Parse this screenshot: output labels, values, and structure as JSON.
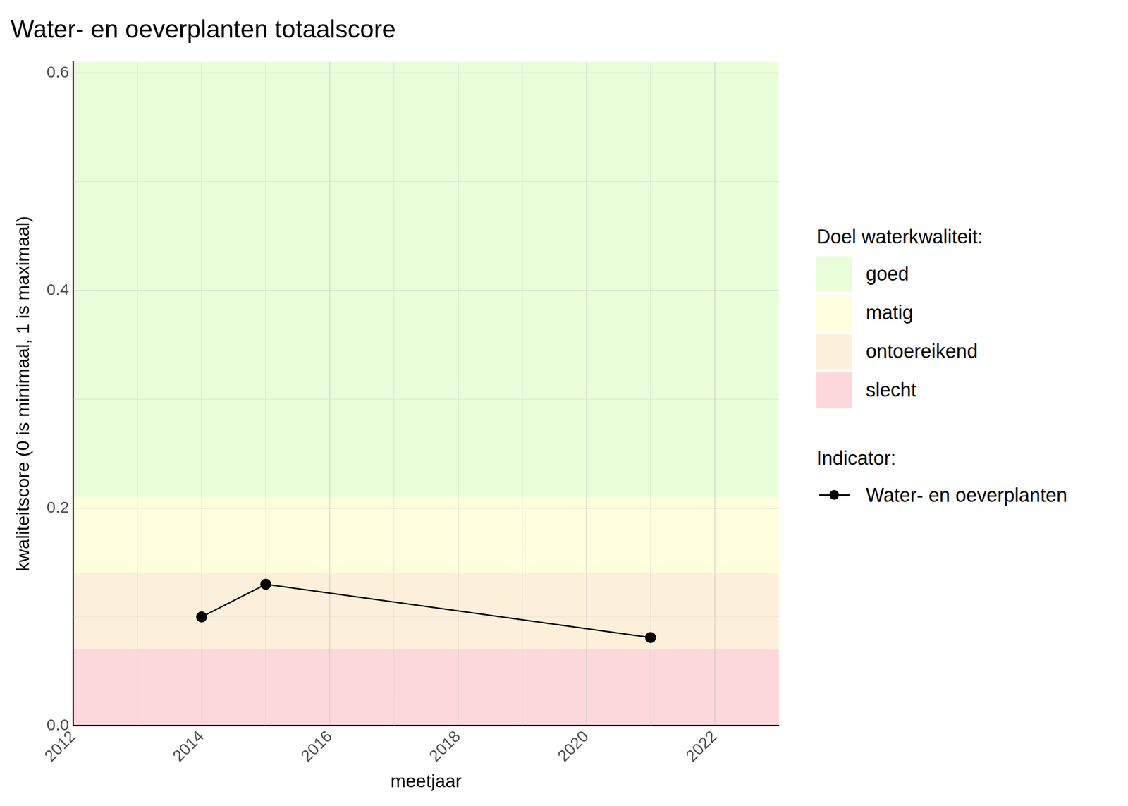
{
  "chart_data": {
    "type": "line",
    "title": "Water- en oeverplanten totaalscore",
    "x_label": "meetjaar",
    "y_label": "kwaliteitscore (0 is minimaal, 1 is maximaal)",
    "x": [
      2014,
      2015,
      2021
    ],
    "series": [
      {
        "name": "Water- en oeverplanten",
        "color": "#000000",
        "values": [
          0.1,
          0.13,
          0.081
        ],
        "marker": "circle",
        "line_style": "solid"
      }
    ],
    "xlim": [
      2012,
      2023
    ],
    "xticks": [
      2012,
      2014,
      2016,
      2018,
      2020,
      2022
    ],
    "ylim": [
      0,
      0.61
    ],
    "yticks": [
      {
        "value": 0,
        "label": "0.0"
      },
      0.2,
      0.4,
      0.6
    ],
    "grid": true,
    "legend": "right",
    "legend_titles": {
      "bands": "Doel waterkwaliteit:",
      "series": "Indicator:"
    },
    "bands": [
      {
        "name": "goed",
        "color": "#e8fdd8",
        "from": 0.21,
        "to": 0.61
      },
      {
        "name": "matig",
        "color": "#fefedc",
        "from": 0.14,
        "to": 0.21
      },
      {
        "name": "ontoereikend",
        "color": "#fdf0da",
        "from": 0.07,
        "to": 0.14
      },
      {
        "name": "slecht",
        "color": "#fdd8da",
        "from": 0,
        "to": 0.07
      }
    ]
  }
}
